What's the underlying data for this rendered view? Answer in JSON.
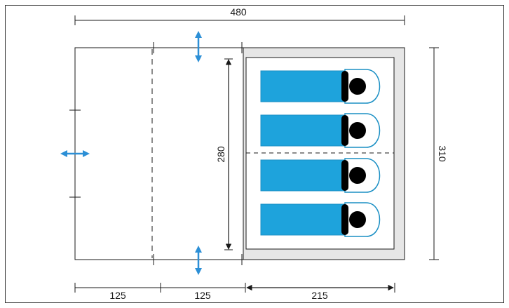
{
  "colors": {
    "outline": "#1a1a1a",
    "frame": "#333333",
    "sleeping_pad": "#1ea3dc",
    "pad_outline": "#1a8fc4",
    "pillow_outline": "#1a8fc4",
    "head": "#000000",
    "bedroom_fill": "#e6e6e6",
    "inner_fill": "#ffffff",
    "vent_arrow": "#2c8fd6"
  },
  "icons": {
    "vent_arrow": "double-headed-arrow",
    "sleeper": "sleeping-person-icon"
  },
  "dimensions": {
    "total_width": "480",
    "total_height": "310",
    "inner_height": "280",
    "vestibule_1": "125",
    "vestibule_2": "125",
    "bedroom_width": "215"
  },
  "sleeper_count": 4
}
